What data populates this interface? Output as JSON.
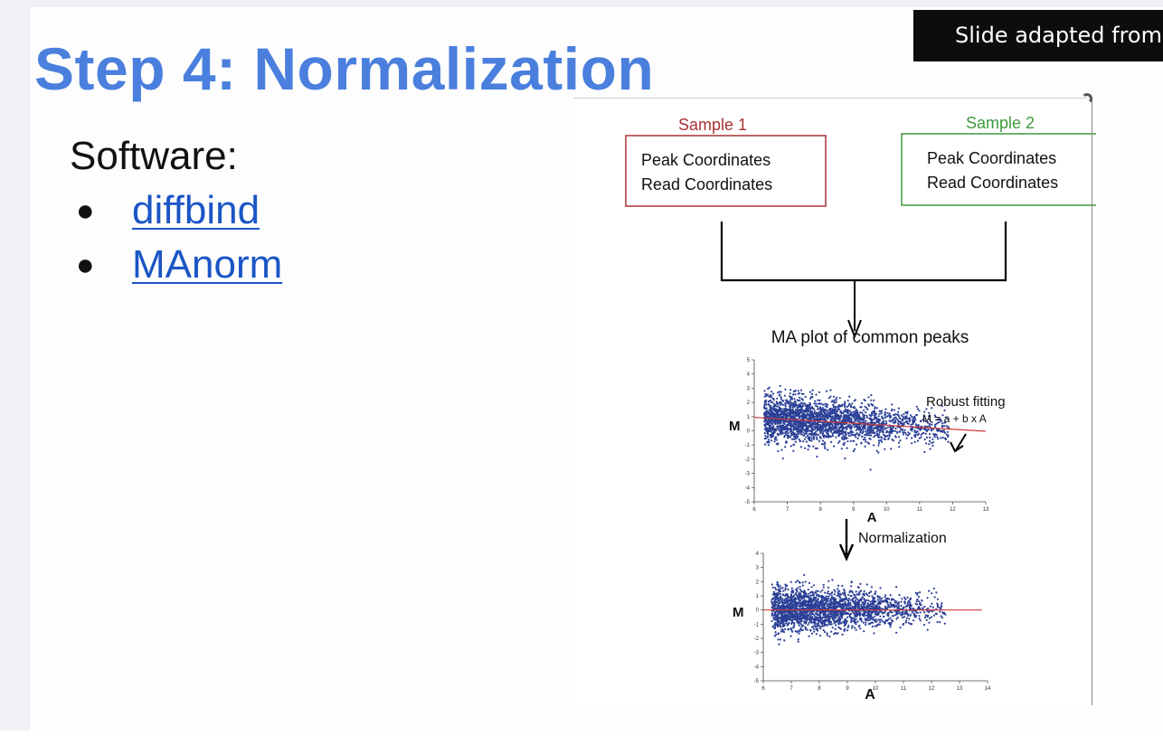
{
  "slide": {
    "title": "Step 4: Normalization",
    "credit": "Slide adapted from",
    "software_label": "Software:",
    "links": [
      "diffbind",
      "MAnorm"
    ]
  },
  "figure": {
    "sample1": {
      "label": "Sample 1",
      "line1": "Peak Coordinates",
      "line2": "Read Coordinates",
      "color": "#a83232"
    },
    "sample2": {
      "label": "Sample  2",
      "line1": "Peak Coordinates",
      "line2": "Read Coordinates",
      "color": "#3f9a3f"
    },
    "ma_title": "MA plot of common peaks",
    "fit_title": "Robust fitting",
    "fit_formula": "M = a + b x A",
    "normalization_label": "Normalization",
    "axis_m": "M",
    "axis_a": "A",
    "point_color": "#2a3f96",
    "fit_color": "#d23a3a",
    "plot1": {
      "xticks": [
        "6",
        "7",
        "8",
        "9",
        "10",
        "11",
        "12",
        "13"
      ],
      "yticks": [
        "5",
        "4",
        "3",
        "2",
        "1",
        "0",
        "-1",
        "-2",
        "-3",
        "-4",
        "-5"
      ],
      "fit": {
        "a": 0.95,
        "b": -0.14,
        "ref_a": 6
      },
      "xlim": [
        6,
        13
      ],
      "ylim": [
        -5,
        5
      ]
    },
    "plot2": {
      "xticks": [
        "6",
        "7",
        "8",
        "9",
        "10",
        "11",
        "12",
        "13",
        "14"
      ],
      "yticks": [
        "4",
        "3",
        "2",
        "1",
        "0",
        "-1",
        "-2",
        "-3",
        "-4",
        "-5"
      ],
      "fit": {
        "a": 0,
        "b": 0,
        "ref_a": 6
      },
      "xlim": [
        6,
        14
      ],
      "ylim": [
        -5,
        4
      ]
    }
  }
}
